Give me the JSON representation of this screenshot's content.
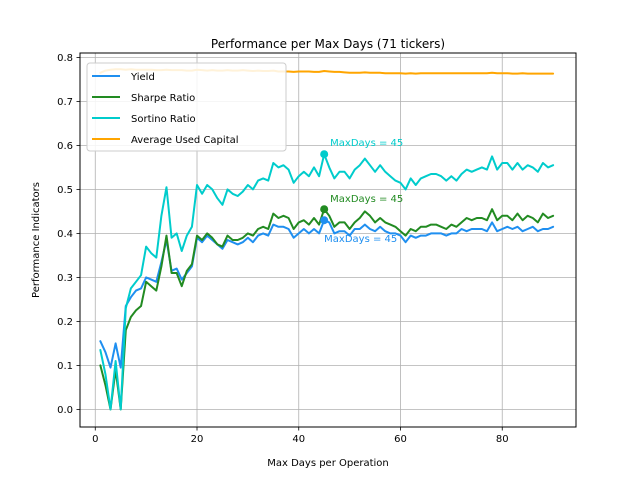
{
  "chart_data": {
    "type": "line",
    "title": "Performance per Max Days (71 tickers)",
    "xlabel": "Max Days per Operation",
    "ylabel": "Performance Indicators",
    "xlim": [
      -3,
      94.5
    ],
    "ylim": [
      -0.04,
      0.81
    ],
    "xticks": [
      0,
      20,
      40,
      60,
      80
    ],
    "yticks": [
      0.0,
      0.1,
      0.2,
      0.3,
      0.4,
      0.5,
      0.6,
      0.7,
      0.8
    ],
    "grid": true,
    "legend_position": "top-left",
    "x": [
      1,
      2,
      3,
      4,
      5,
      6,
      7,
      8,
      9,
      10,
      11,
      12,
      13,
      14,
      15,
      16,
      17,
      18,
      19,
      20,
      21,
      22,
      23,
      24,
      25,
      26,
      27,
      28,
      29,
      30,
      31,
      32,
      33,
      34,
      35,
      36,
      37,
      38,
      39,
      40,
      41,
      42,
      43,
      44,
      45,
      46,
      47,
      48,
      49,
      50,
      51,
      52,
      53,
      54,
      55,
      56,
      57,
      58,
      59,
      60,
      61,
      62,
      63,
      64,
      65,
      66,
      67,
      68,
      69,
      70,
      71,
      72,
      73,
      74,
      75,
      76,
      77,
      78,
      79,
      80,
      81,
      82,
      83,
      84,
      85,
      86,
      87,
      88,
      89,
      90
    ],
    "series": [
      {
        "name": "Yield",
        "color": "#1f8ff0",
        "values": [
          0.155,
          0.13,
          0.095,
          0.15,
          0.095,
          0.235,
          0.255,
          0.27,
          0.275,
          0.3,
          0.295,
          0.29,
          0.335,
          0.385,
          0.315,
          0.32,
          0.295,
          0.31,
          0.325,
          0.39,
          0.38,
          0.395,
          0.385,
          0.375,
          0.365,
          0.385,
          0.38,
          0.375,
          0.38,
          0.39,
          0.38,
          0.395,
          0.4,
          0.395,
          0.42,
          0.415,
          0.415,
          0.41,
          0.39,
          0.4,
          0.41,
          0.4,
          0.41,
          0.4,
          0.43,
          0.425,
          0.4,
          0.405,
          0.405,
          0.395,
          0.41,
          0.41,
          0.42,
          0.41,
          0.405,
          0.415,
          0.405,
          0.4,
          0.4,
          0.395,
          0.38,
          0.395,
          0.39,
          0.395,
          0.395,
          0.4,
          0.4,
          0.4,
          0.395,
          0.4,
          0.4,
          0.41,
          0.405,
          0.41,
          0.41,
          0.41,
          0.405,
          0.425,
          0.405,
          0.41,
          0.415,
          0.41,
          0.415,
          0.405,
          0.41,
          0.415,
          0.405,
          0.41,
          0.41,
          0.415
        ]
      },
      {
        "name": "Sharpe Ratio",
        "color": "#228b22",
        "values": [
          0.1,
          0.055,
          0.0,
          0.09,
          0.0,
          0.18,
          0.21,
          0.225,
          0.235,
          0.29,
          0.28,
          0.27,
          0.325,
          0.395,
          0.31,
          0.31,
          0.28,
          0.315,
          0.33,
          0.395,
          0.385,
          0.4,
          0.39,
          0.375,
          0.37,
          0.395,
          0.385,
          0.385,
          0.39,
          0.4,
          0.395,
          0.41,
          0.415,
          0.41,
          0.445,
          0.435,
          0.44,
          0.435,
          0.41,
          0.425,
          0.43,
          0.42,
          0.435,
          0.42,
          0.455,
          0.44,
          0.415,
          0.425,
          0.425,
          0.41,
          0.425,
          0.435,
          0.45,
          0.44,
          0.425,
          0.435,
          0.425,
          0.42,
          0.415,
          0.405,
          0.395,
          0.41,
          0.405,
          0.415,
          0.415,
          0.42,
          0.42,
          0.415,
          0.41,
          0.42,
          0.415,
          0.425,
          0.435,
          0.43,
          0.435,
          0.435,
          0.43,
          0.455,
          0.43,
          0.44,
          0.44,
          0.43,
          0.445,
          0.43,
          0.44,
          0.435,
          0.425,
          0.445,
          0.435,
          0.44
        ]
      },
      {
        "name": "Sortino Ratio",
        "color": "#00cccc",
        "values": [
          0.135,
          0.08,
          0.0,
          0.11,
          0.0,
          0.23,
          0.275,
          0.29,
          0.305,
          0.37,
          0.355,
          0.345,
          0.44,
          0.505,
          0.39,
          0.4,
          0.36,
          0.395,
          0.415,
          0.51,
          0.49,
          0.51,
          0.5,
          0.48,
          0.465,
          0.5,
          0.49,
          0.485,
          0.495,
          0.51,
          0.5,
          0.52,
          0.525,
          0.52,
          0.56,
          0.55,
          0.555,
          0.545,
          0.515,
          0.53,
          0.54,
          0.53,
          0.55,
          0.53,
          0.58,
          0.55,
          0.525,
          0.54,
          0.54,
          0.525,
          0.545,
          0.555,
          0.57,
          0.555,
          0.54,
          0.555,
          0.54,
          0.53,
          0.52,
          0.515,
          0.5,
          0.525,
          0.51,
          0.525,
          0.53,
          0.535,
          0.535,
          0.53,
          0.52,
          0.53,
          0.52,
          0.535,
          0.545,
          0.54,
          0.545,
          0.55,
          0.545,
          0.575,
          0.545,
          0.56,
          0.56,
          0.545,
          0.56,
          0.545,
          0.555,
          0.55,
          0.54,
          0.56,
          0.55,
          0.555
        ]
      },
      {
        "name": "Average Used Capital",
        "color": "#ffa500",
        "values": [
          0.765,
          0.77,
          0.772,
          0.773,
          0.773,
          0.772,
          0.773,
          0.772,
          0.772,
          0.772,
          0.772,
          0.771,
          0.771,
          0.772,
          0.771,
          0.771,
          0.771,
          0.77,
          0.77,
          0.772,
          0.771,
          0.77,
          0.771,
          0.77,
          0.77,
          0.771,
          0.77,
          0.77,
          0.771,
          0.77,
          0.769,
          0.77,
          0.769,
          0.769,
          0.77,
          0.768,
          0.768,
          0.768,
          0.767,
          0.768,
          0.768,
          0.768,
          0.767,
          0.767,
          0.769,
          0.768,
          0.767,
          0.767,
          0.766,
          0.765,
          0.765,
          0.765,
          0.766,
          0.765,
          0.765,
          0.765,
          0.764,
          0.764,
          0.764,
          0.764,
          0.763,
          0.764,
          0.763,
          0.764,
          0.764,
          0.764,
          0.764,
          0.764,
          0.764,
          0.764,
          0.764,
          0.764,
          0.764,
          0.764,
          0.764,
          0.764,
          0.764,
          0.765,
          0.764,
          0.764,
          0.764,
          0.763,
          0.763,
          0.764,
          0.763,
          0.763,
          0.763,
          0.763,
          0.763,
          0.763
        ]
      }
    ],
    "highlight_points": [
      {
        "series": 0,
        "x": 45,
        "y": 0.43,
        "label": "MaxDays = 45"
      },
      {
        "series": 1,
        "x": 45,
        "y": 0.455,
        "label": "MaxDays = 45"
      },
      {
        "series": 2,
        "x": 45,
        "y": 0.58,
        "label": "MaxDays = 45"
      }
    ]
  }
}
